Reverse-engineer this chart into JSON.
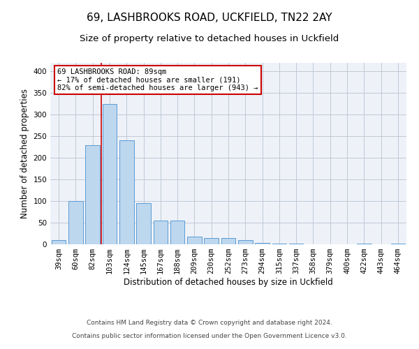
{
  "title_line1": "69, LASHBROOKS ROAD, UCKFIELD, TN22 2AY",
  "title_line2": "Size of property relative to detached houses in Uckfield",
  "xlabel": "Distribution of detached houses by size in Uckfield",
  "ylabel": "Number of detached properties",
  "categories": [
    "39sqm",
    "60sqm",
    "82sqm",
    "103sqm",
    "124sqm",
    "145sqm",
    "167sqm",
    "188sqm",
    "209sqm",
    "230sqm",
    "252sqm",
    "273sqm",
    "294sqm",
    "315sqm",
    "337sqm",
    "358sqm",
    "379sqm",
    "400sqm",
    "422sqm",
    "443sqm",
    "464sqm"
  ],
  "values": [
    10,
    100,
    230,
    325,
    240,
    95,
    55,
    55,
    18,
    14,
    14,
    10,
    3,
    2,
    1,
    0,
    0,
    0,
    2,
    0,
    2
  ],
  "bar_color": "#BDD7EE",
  "bar_edge_color": "#5B9BD5",
  "property_line_color": "#CC0000",
  "property_line_x": 2.5,
  "annotation_text": "69 LASHBROOKS ROAD: 89sqm\n← 17% of detached houses are smaller (191)\n82% of semi-detached houses are larger (943) →",
  "annotation_box_color": "#CC0000",
  "ylim": [
    0,
    420
  ],
  "yticks": [
    0,
    50,
    100,
    150,
    200,
    250,
    300,
    350,
    400
  ],
  "grid_color": "#C0C8D8",
  "background_color": "#EEF2F8",
  "footer_line1": "Contains HM Land Registry data © Crown copyright and database right 2024.",
  "footer_line2": "Contains public sector information licensed under the Open Government Licence v3.0.",
  "title_fontsize": 11,
  "subtitle_fontsize": 9.5,
  "axis_label_fontsize": 8.5,
  "tick_fontsize": 7.5,
  "annotation_fontsize": 7.5,
  "footer_fontsize": 6.5
}
